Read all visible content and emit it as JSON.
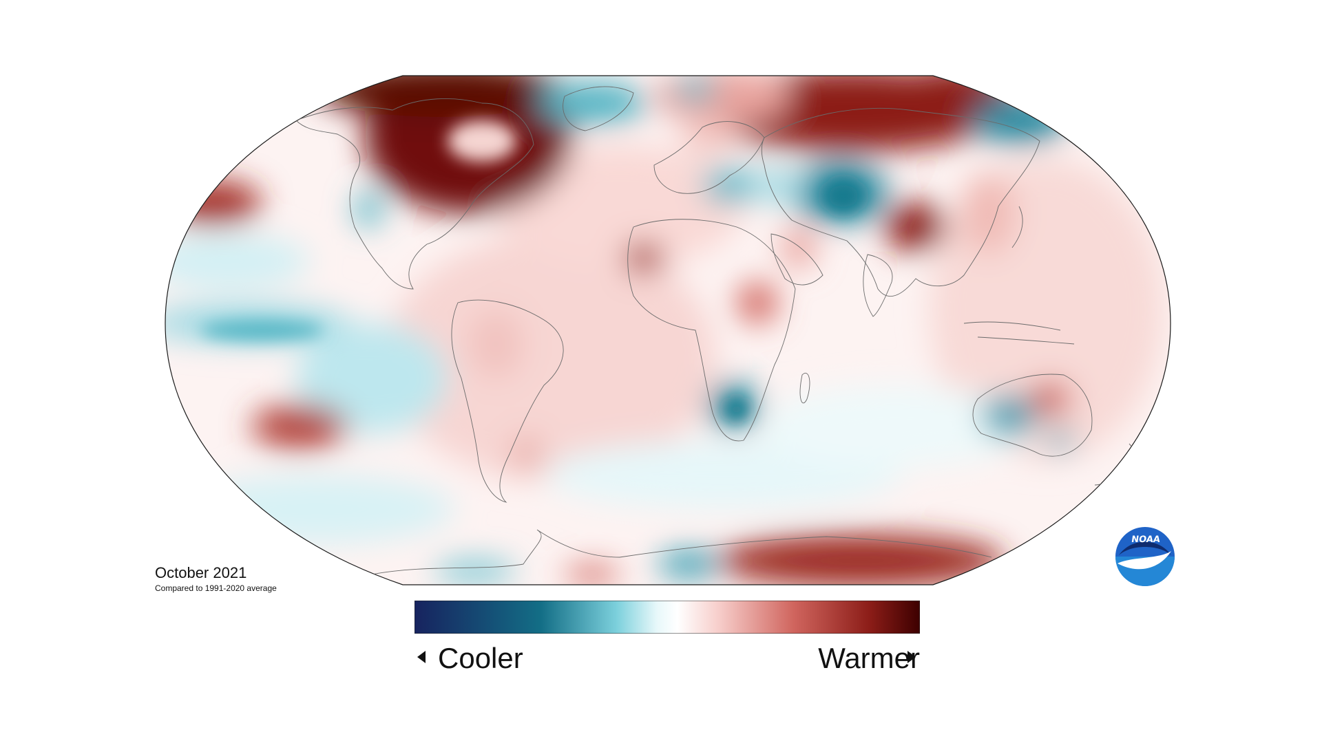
{
  "map": {
    "caption_title": "October 2021",
    "caption_subtitle": "Compared to 1991-2020 average",
    "legend": {
      "cooler_label": "Cooler",
      "warmer_label": "Warmer",
      "colors": [
        "#17235f",
        "#136e86",
        "#4eb4c4",
        "#c9eef3",
        "#ffffff",
        "#f7cfcc",
        "#d77a73",
        "#a52a25",
        "#4b0000"
      ]
    },
    "logo_text": "NOAA",
    "colors": {
      "warm_strong": "#8c1d18",
      "warm_mid": "#c9524b",
      "warm_light": "#f2c3bf",
      "neutral": "#fbfbfb",
      "cool_light": "#c4ecf1",
      "cool_mid": "#54b6c6",
      "cool_strong": "#127a8e",
      "land_border": "#6a6a6a"
    }
  }
}
